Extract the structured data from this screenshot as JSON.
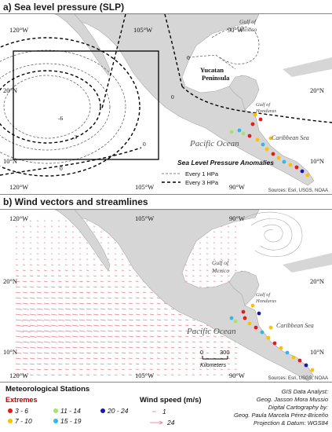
{
  "panel_a": {
    "title": "a) Sea level pressure (SLP)",
    "lon_labels_top": [
      "120°W",
      "105°W",
      "90°W"
    ],
    "lon_labels_bottom": [
      "120°W",
      "105°W",
      "90°W"
    ],
    "lat_labels_left": [
      "20°N",
      "10°N"
    ],
    "lat_labels_right": [
      "20°N",
      "10°N"
    ],
    "place_labels": {
      "gulf_mexico": [
        "Gulf of",
        "Mexico"
      ],
      "yucatan": [
        "Yucatan",
        "Peninsula"
      ],
      "gulf_honduras": [
        "Gulf of",
        "Honduras"
      ],
      "pacific": "Pacific Ocean",
      "caribbean": "Caribbean Sea"
    },
    "contour_labels": [
      "0",
      "-6",
      "-3",
      "0",
      "0",
      "0"
    ],
    "legend_title": "Sea Level Pressure Anomalies",
    "legend_items": [
      "Every 1 HPa",
      "Every 3 HPa"
    ],
    "sources": "Sources: Esri, USGS, NOAA"
  },
  "panel_b": {
    "title": "b) Wind vectors and streamlines",
    "lon_labels_top": [
      "120°W",
      "105°W",
      "90°W"
    ],
    "lon_labels_bottom": [
      "120°W",
      "105°W",
      "90°W"
    ],
    "lat_labels_left": [
      "20°N",
      "10°N"
    ],
    "lat_labels_right": [
      "20°N",
      "10°N"
    ],
    "place_labels": {
      "gulf_mexico": [
        "Gulf of",
        "Mexico"
      ],
      "gulf_honduras": [
        "Gulf of",
        "Honduras"
      ],
      "pacific": "Pacific Ocean",
      "caribbean": "Caribbean Sea"
    },
    "scale_labels": [
      "0",
      "300"
    ],
    "scale_unit": "Kilometers",
    "sources": "Sources: Esri, USGS, NOAA"
  },
  "legend": {
    "stations_title": "Meteorological Stations",
    "extremes_title": "Extremes",
    "classes": [
      {
        "label": "3 - 6",
        "color": "#e41a1c"
      },
      {
        "label": "7 - 10",
        "color": "#ffc000"
      },
      {
        "label": "11 - 14",
        "color": "#a6e36b"
      },
      {
        "label": "15 - 19",
        "color": "#33b8e6"
      },
      {
        "label": "20 - 24",
        "color": "#1a1aa6"
      }
    ],
    "wind_title": "Wind speed (m/s)",
    "wind_items": [
      "1",
      "24"
    ],
    "credits": [
      "GIS Data Analyst:",
      "Geog. Jasson Mora Mussio",
      "Digital Cartography by:",
      "Geog. Paula Marcela Pérez-Briceño",
      "Projection & Datum: WGS84"
    ]
  },
  "colors": {
    "land": "#d4d4d4",
    "sea": "#ffffff",
    "wind_vector": "#e8768a",
    "contour": "#000000"
  }
}
